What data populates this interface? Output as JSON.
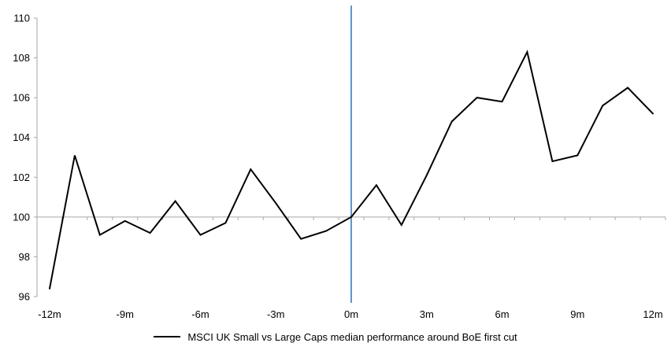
{
  "chart_data": {
    "type": "line",
    "title": "",
    "xlabel": "",
    "ylabel": "",
    "x_months": [
      -12,
      -11,
      -10,
      -9,
      -8,
      -7,
      -6,
      -5,
      -4,
      -3,
      -2,
      -1,
      0,
      1,
      2,
      3,
      4,
      5,
      6,
      7,
      8,
      9,
      10,
      11,
      12
    ],
    "series": [
      {
        "name": "MSCI UK Small vs Large Caps median performance around BoE first cut",
        "color": "#000000",
        "values": [
          96.4,
          103.1,
          99.1,
          99.8,
          99.2,
          100.8,
          99.1,
          99.7,
          102.4,
          100.7,
          98.9,
          99.3,
          100.0,
          101.6,
          99.6,
          102.1,
          104.8,
          106.0,
          105.8,
          108.3,
          102.8,
          103.1,
          105.6,
          106.5,
          105.2
        ]
      }
    ],
    "x_tick_labels": [
      "-12m",
      "-9m",
      "-6m",
      "-3m",
      "0m",
      "3m",
      "6m",
      "9m",
      "12m"
    ],
    "x_label_step": 3,
    "yticks": [
      96,
      98,
      100,
      102,
      104,
      106,
      108,
      110
    ],
    "ylim": [
      96,
      110
    ],
    "x_axis_cross_at": 100,
    "event_line": {
      "x_month": 0,
      "color": "#5289c7"
    },
    "axis_color": "#a6a6a6",
    "tick_label_color": "#000000",
    "grid": false,
    "legend_position": "bottom"
  },
  "legend": {
    "label": "MSCI UK Small vs Large Caps median performance around BoE first cut",
    "swatch_color": "#000000"
  }
}
